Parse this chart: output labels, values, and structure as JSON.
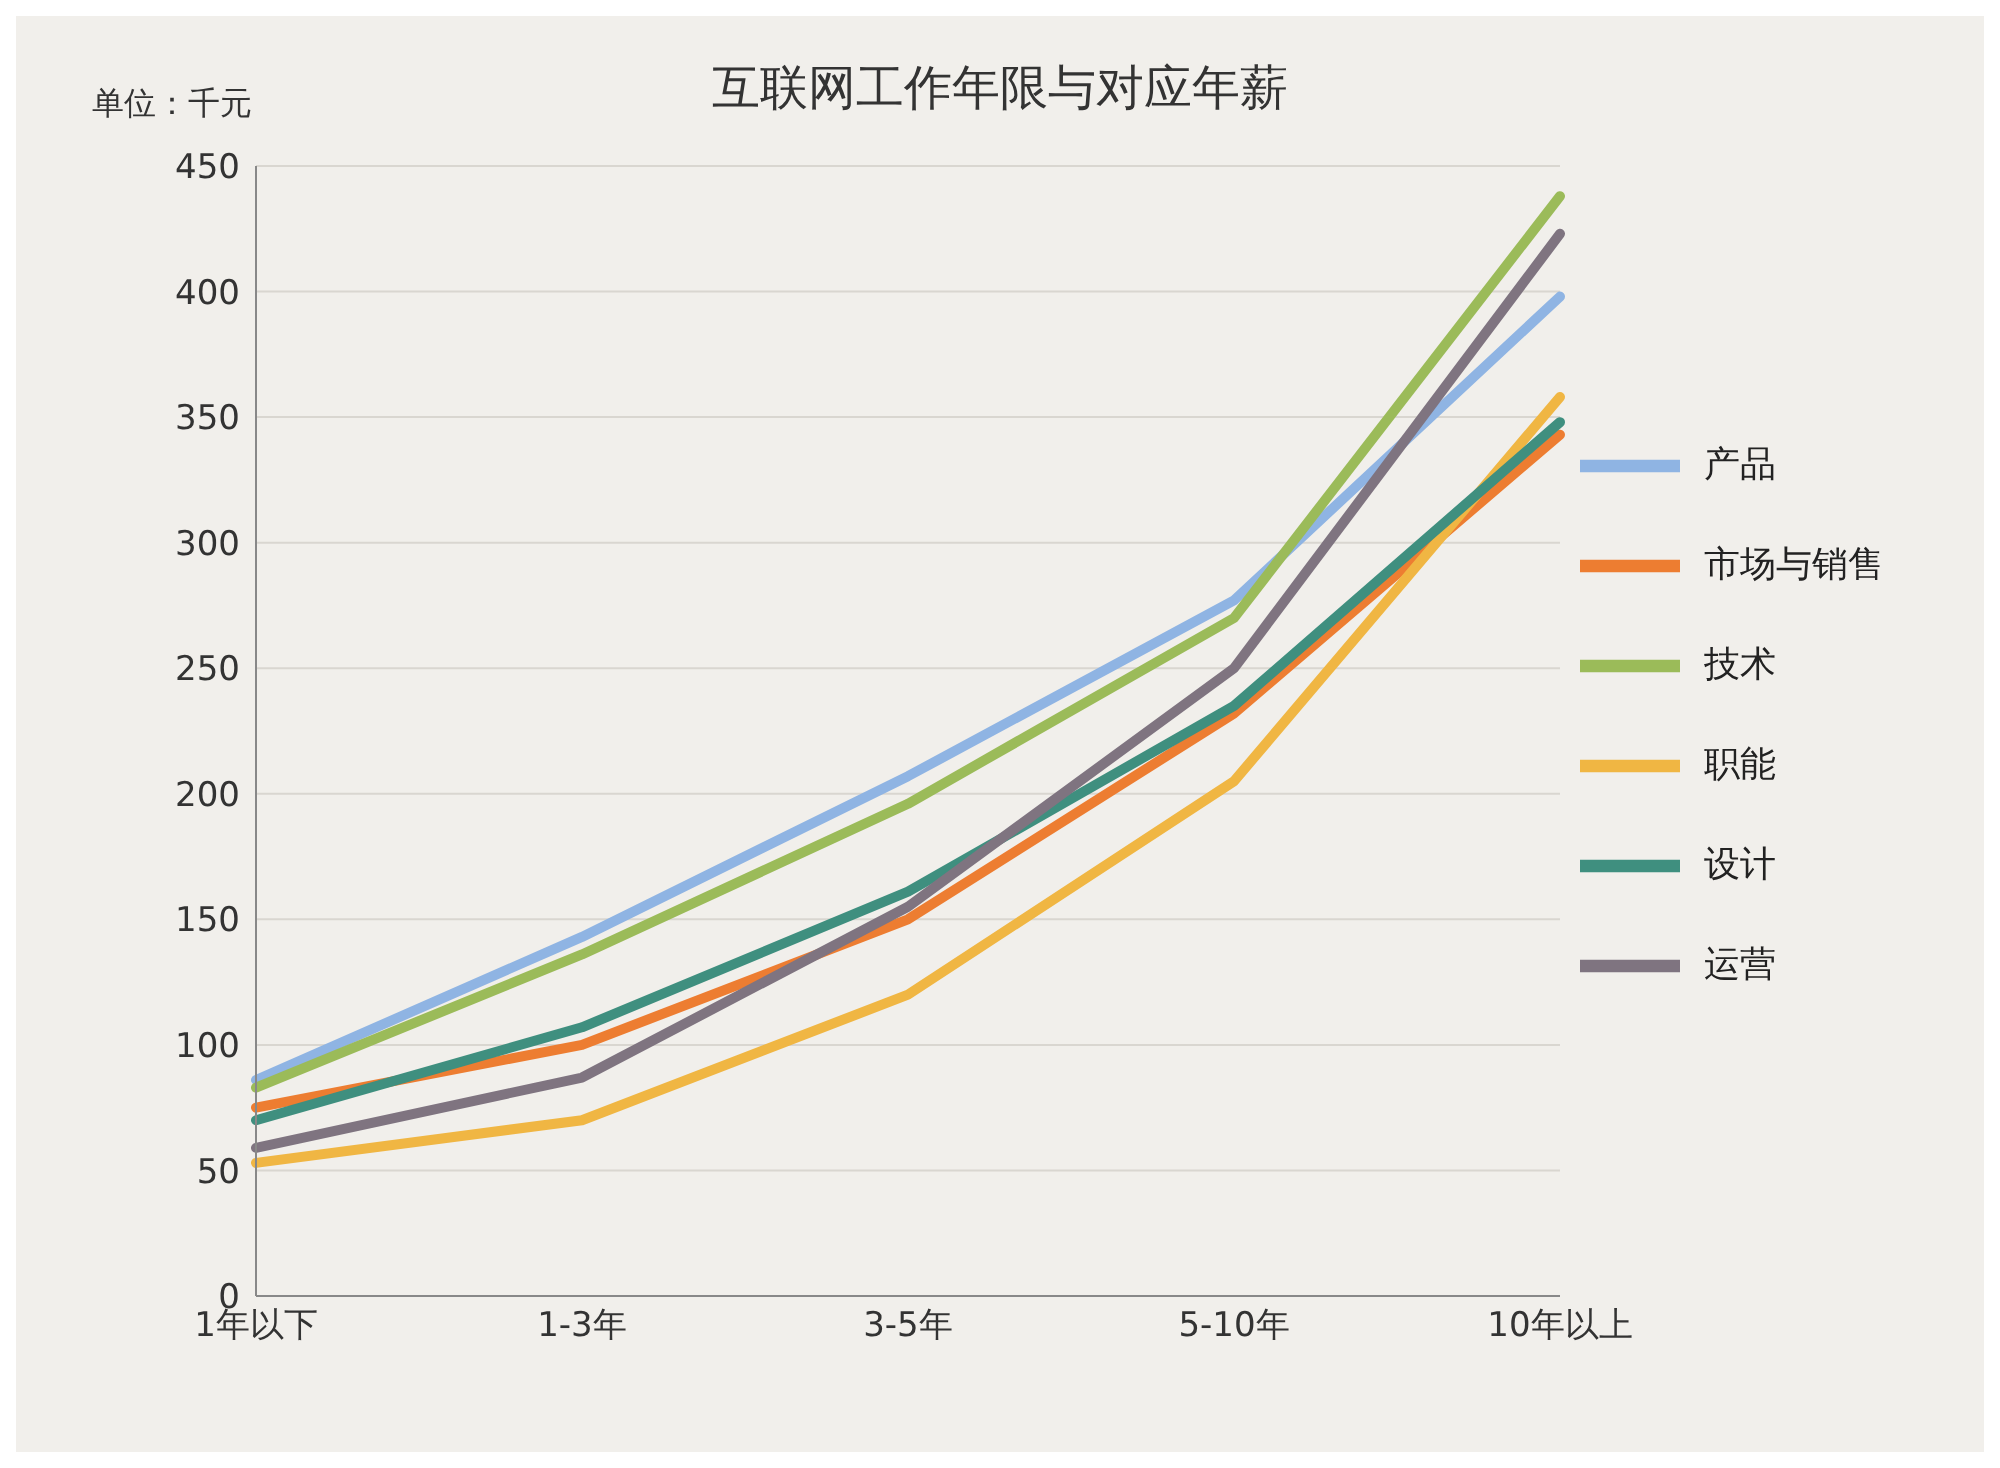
{
  "chart_data": {
    "type": "line",
    "title": "互联网工作年限与对应年薪",
    "ylabel": "单位：千元",
    "categories": [
      "1年以下",
      "1-3年",
      "3-5年",
      "5-10年",
      "10年以上"
    ],
    "series": [
      {
        "name": "产品",
        "color": "#8fb4e3",
        "values": [
          86,
          143,
          207,
          277,
          398
        ]
      },
      {
        "name": "市场与销售",
        "color": "#ed7d31",
        "values": [
          75,
          100,
          150,
          232,
          343
        ]
      },
      {
        "name": "技术",
        "color": "#9bbb59",
        "values": [
          83,
          136,
          196,
          270,
          438
        ]
      },
      {
        "name": "职能",
        "color": "#f0b643",
        "values": [
          53,
          70,
          120,
          205,
          358
        ]
      },
      {
        "name": "设计",
        "color": "#3f8f7f",
        "values": [
          70,
          107,
          161,
          235,
          348
        ]
      },
      {
        "name": "运营",
        "color": "#7f7480",
        "values": [
          59,
          87,
          155,
          250,
          423
        ]
      }
    ],
    "ylim": [
      0,
      450
    ],
    "yticks": [
      0,
      50,
      100,
      150,
      200,
      250,
      300,
      350,
      400,
      450
    ],
    "grid": "y",
    "legend": "right",
    "marker": "none",
    "line_style": "solid"
  }
}
